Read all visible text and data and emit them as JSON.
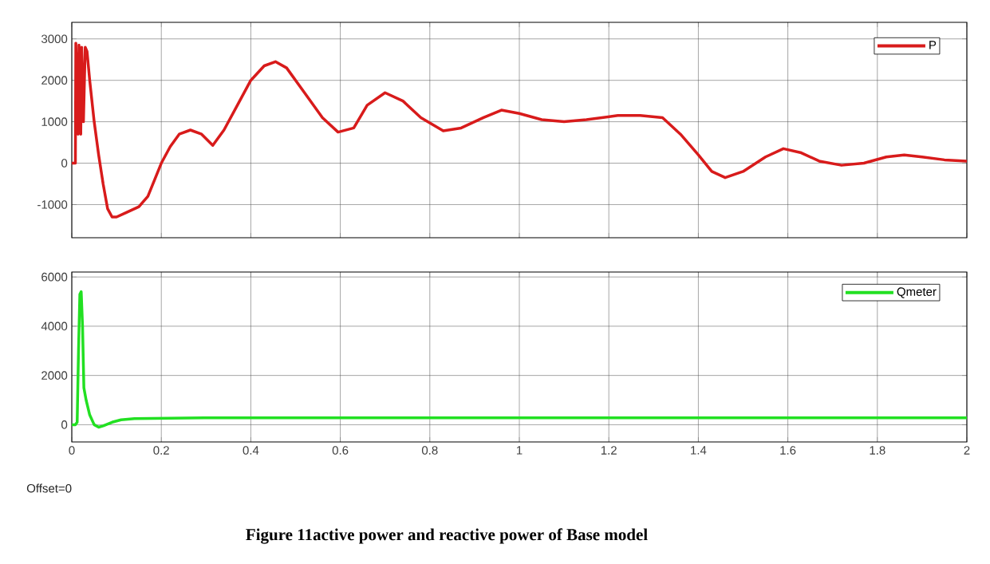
{
  "chart_data": [
    {
      "type": "line",
      "xlim": [
        0,
        2
      ],
      "xticks": [
        0,
        0.2,
        0.4,
        0.6,
        0.8,
        1,
        1.2,
        1.4,
        1.6,
        1.8,
        2
      ],
      "ylim": [
        -1800,
        3400
      ],
      "yticks": [
        -1000,
        0,
        1000,
        2000,
        3000
      ],
      "grid": true,
      "legend": "top right",
      "tick_labels": "y",
      "marker": "none",
      "line_style": "solid",
      "x": [
        0,
        0.008,
        0.009,
        0.014,
        0.016,
        0.02,
        0.022,
        0.026,
        0.03,
        0.034,
        0.04,
        0.05,
        0.06,
        0.07,
        0.08,
        0.09,
        0.1,
        0.12,
        0.15,
        0.17,
        0.2,
        0.22,
        0.24,
        0.265,
        0.29,
        0.315,
        0.34,
        0.37,
        0.4,
        0.43,
        0.455,
        0.48,
        0.52,
        0.56,
        0.595,
        0.63,
        0.66,
        0.7,
        0.74,
        0.78,
        0.83,
        0.87,
        0.92,
        0.96,
        1.0,
        1.05,
        1.1,
        1.15,
        1.22,
        1.27,
        1.32,
        1.36,
        1.4,
        1.43,
        1.46,
        1.5,
        1.55,
        1.59,
        1.63,
        1.67,
        1.72,
        1.77,
        1.82,
        1.86,
        1.9,
        1.95,
        2.0
      ],
      "series": [
        {
          "name": "P",
          "color": "#d81b1b",
          "values": [
            0,
            0,
            2900,
            700,
            2850,
            700,
            2800,
            1000,
            2800,
            2700,
            2000,
            1000,
            200,
            -500,
            -1100,
            -1300,
            -1300,
            -1200,
            -1050,
            -800,
            0,
            400,
            700,
            800,
            700,
            430,
            800,
            1400,
            2000,
            2350,
            2450,
            2300,
            1700,
            1100,
            750,
            850,
            1400,
            1700,
            1500,
            1100,
            780,
            850,
            1100,
            1280,
            1200,
            1050,
            1000,
            1050,
            1150,
            1150,
            1100,
            700,
            200,
            -200,
            -350,
            -200,
            150,
            350,
            250,
            50,
            -50,
            0,
            150,
            200,
            150,
            80,
            50
          ]
        }
      ]
    },
    {
      "type": "line",
      "xlim": [
        0,
        2
      ],
      "xticks": [
        0,
        0.2,
        0.4,
        0.6,
        0.8,
        1,
        1.2,
        1.4,
        1.6,
        1.8,
        2
      ],
      "ylim": [
        -700,
        6200
      ],
      "yticks": [
        0,
        2000,
        4000,
        6000
      ],
      "grid": true,
      "legend": "top right",
      "marker": "none",
      "line_style": "solid",
      "x": [
        0,
        0.008,
        0.012,
        0.015,
        0.018,
        0.021,
        0.024,
        0.027,
        0.032,
        0.04,
        0.05,
        0.06,
        0.07,
        0.09,
        0.11,
        0.14,
        0.3,
        0.5,
        0.8,
        1.0,
        1.3,
        1.6,
        2.0
      ],
      "series": [
        {
          "name": "Qmeter",
          "color": "#22e022",
          "values": [
            0,
            0,
            100,
            3000,
            5300,
            5400,
            4000,
            1500,
            1000,
            400,
            0,
            -100,
            -50,
            100,
            200,
            250,
            280,
            280,
            280,
            280,
            280,
            280,
            280
          ]
        }
      ],
      "annotations": [
        "Offset=0",
        "Figure 11active power and reactive power of Base model"
      ]
    }
  ]
}
